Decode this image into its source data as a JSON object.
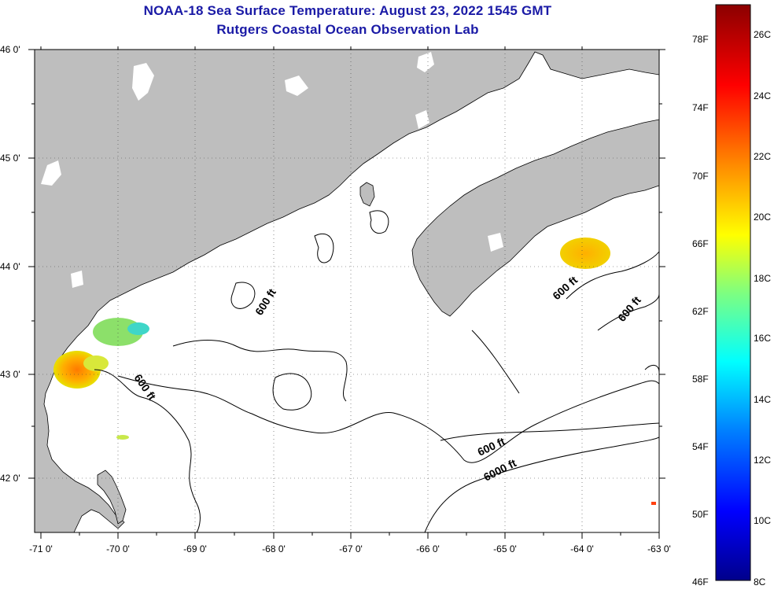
{
  "title": {
    "line1": "NOAA-18 Sea Surface Temperature:  August 23, 2022 1545 GMT",
    "line2": "Rutgers Coastal Ocean Observation Lab"
  },
  "map": {
    "lat_labels": [
      "46 0'",
      "45 0'",
      "44 0'",
      "43 0'",
      "42 0'"
    ],
    "lon_labels": [
      "-71 0'",
      "-70 0'",
      "-69 0'",
      "-68 0'",
      "-67 0'",
      "-66 0'",
      "-65 0'",
      "-64 0'",
      "-63 0'"
    ],
    "contour_labels": [
      "600 ft",
      "600 ft",
      "600 ft",
      "600 ft",
      "600 ft",
      "6000 ft"
    ],
    "colors": {
      "land": "#bebebe",
      "water": "#ffffff",
      "contour": "#000000"
    }
  },
  "colorbar": {
    "fahrenheit": [
      "78F",
      "74F",
      "70F",
      "66F",
      "62F",
      "58F",
      "54F",
      "50F",
      "46F"
    ],
    "celsius": [
      "26C",
      "24C",
      "22C",
      "20C",
      "18C",
      "16C",
      "14C",
      "12C",
      "10C",
      "8C"
    ],
    "gradient": [
      "#8b0000",
      "#ff0000",
      "#ff8c00",
      "#ffff00",
      "#7fff7f",
      "#00ffff",
      "#0080ff",
      "#0000ff",
      "#00008b"
    ]
  }
}
